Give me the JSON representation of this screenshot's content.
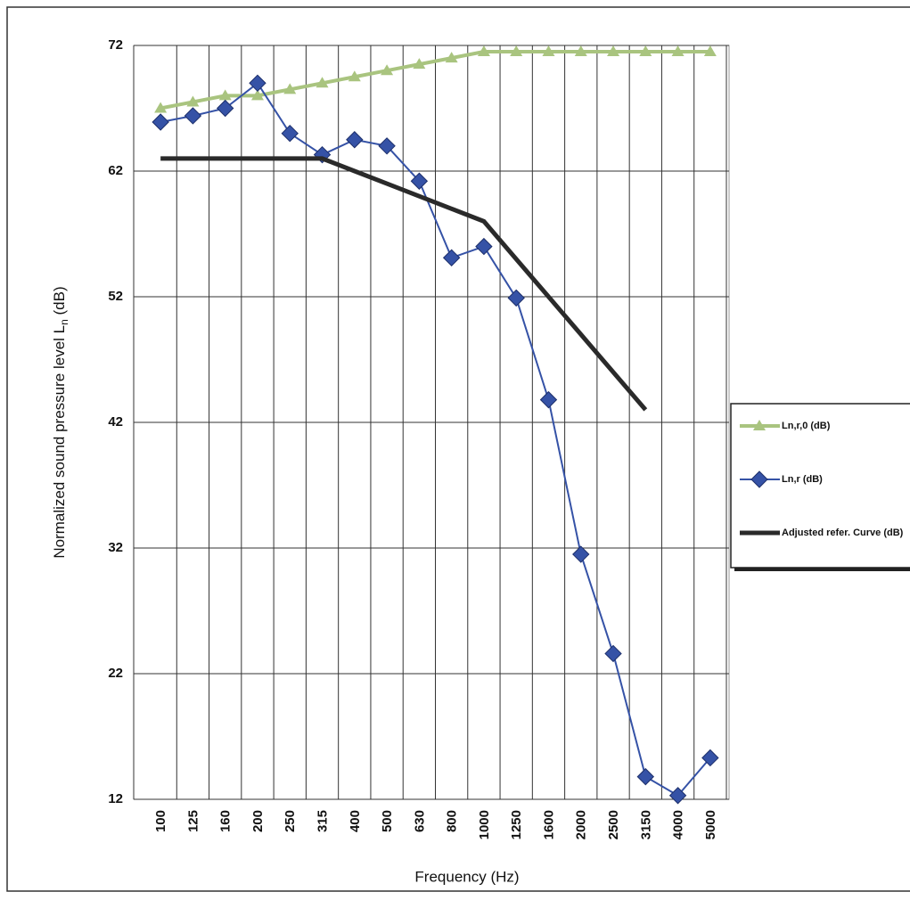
{
  "chart_data": {
    "type": "line",
    "xlabel": "Frequency (Hz)",
    "ylabel": "Normalized sound pressure level L",
    "ylabel_sub": "n",
    "ylabel_suffix": " (dB)",
    "categories": [
      "100",
      "125",
      "160",
      "200",
      "250",
      "315",
      "400",
      "500",
      "630",
      "800",
      "1000",
      "1250",
      "1600",
      "2000",
      "2500",
      "3150",
      "4000",
      "5000"
    ],
    "series": [
      {
        "name": "Ln,r,0 (dB)",
        "color": "#a9c47f",
        "marker": "triangle",
        "values": [
          67,
          67.5,
          68,
          68,
          68.5,
          69,
          69.5,
          70,
          70.5,
          71,
          71.5,
          71.5,
          71.5,
          71.5,
          71.5,
          71.5,
          71.5,
          71.5
        ]
      },
      {
        "name": "Ln,r (dB)",
        "color": "#3552a6",
        "marker": "diamond",
        "values": [
          65.9,
          66.4,
          67,
          69,
          65,
          63.3,
          64.5,
          64,
          61.2,
          55.1,
          56,
          51.9,
          43.8,
          31.5,
          23.6,
          13.8,
          12.3,
          15.3
        ]
      },
      {
        "name": "Adjusted refer. Curve (dB)",
        "color": "#2a2a2a",
        "marker": "none",
        "values": [
          63,
          63,
          63,
          63,
          63,
          63,
          62,
          61,
          60,
          59,
          58,
          55,
          52,
          49,
          46,
          43,
          null,
          null
        ]
      }
    ],
    "ylim": [
      12,
      72
    ],
    "yticks": [
      12,
      22,
      32,
      42,
      52,
      62,
      72
    ],
    "grid": true,
    "legend": "right"
  }
}
